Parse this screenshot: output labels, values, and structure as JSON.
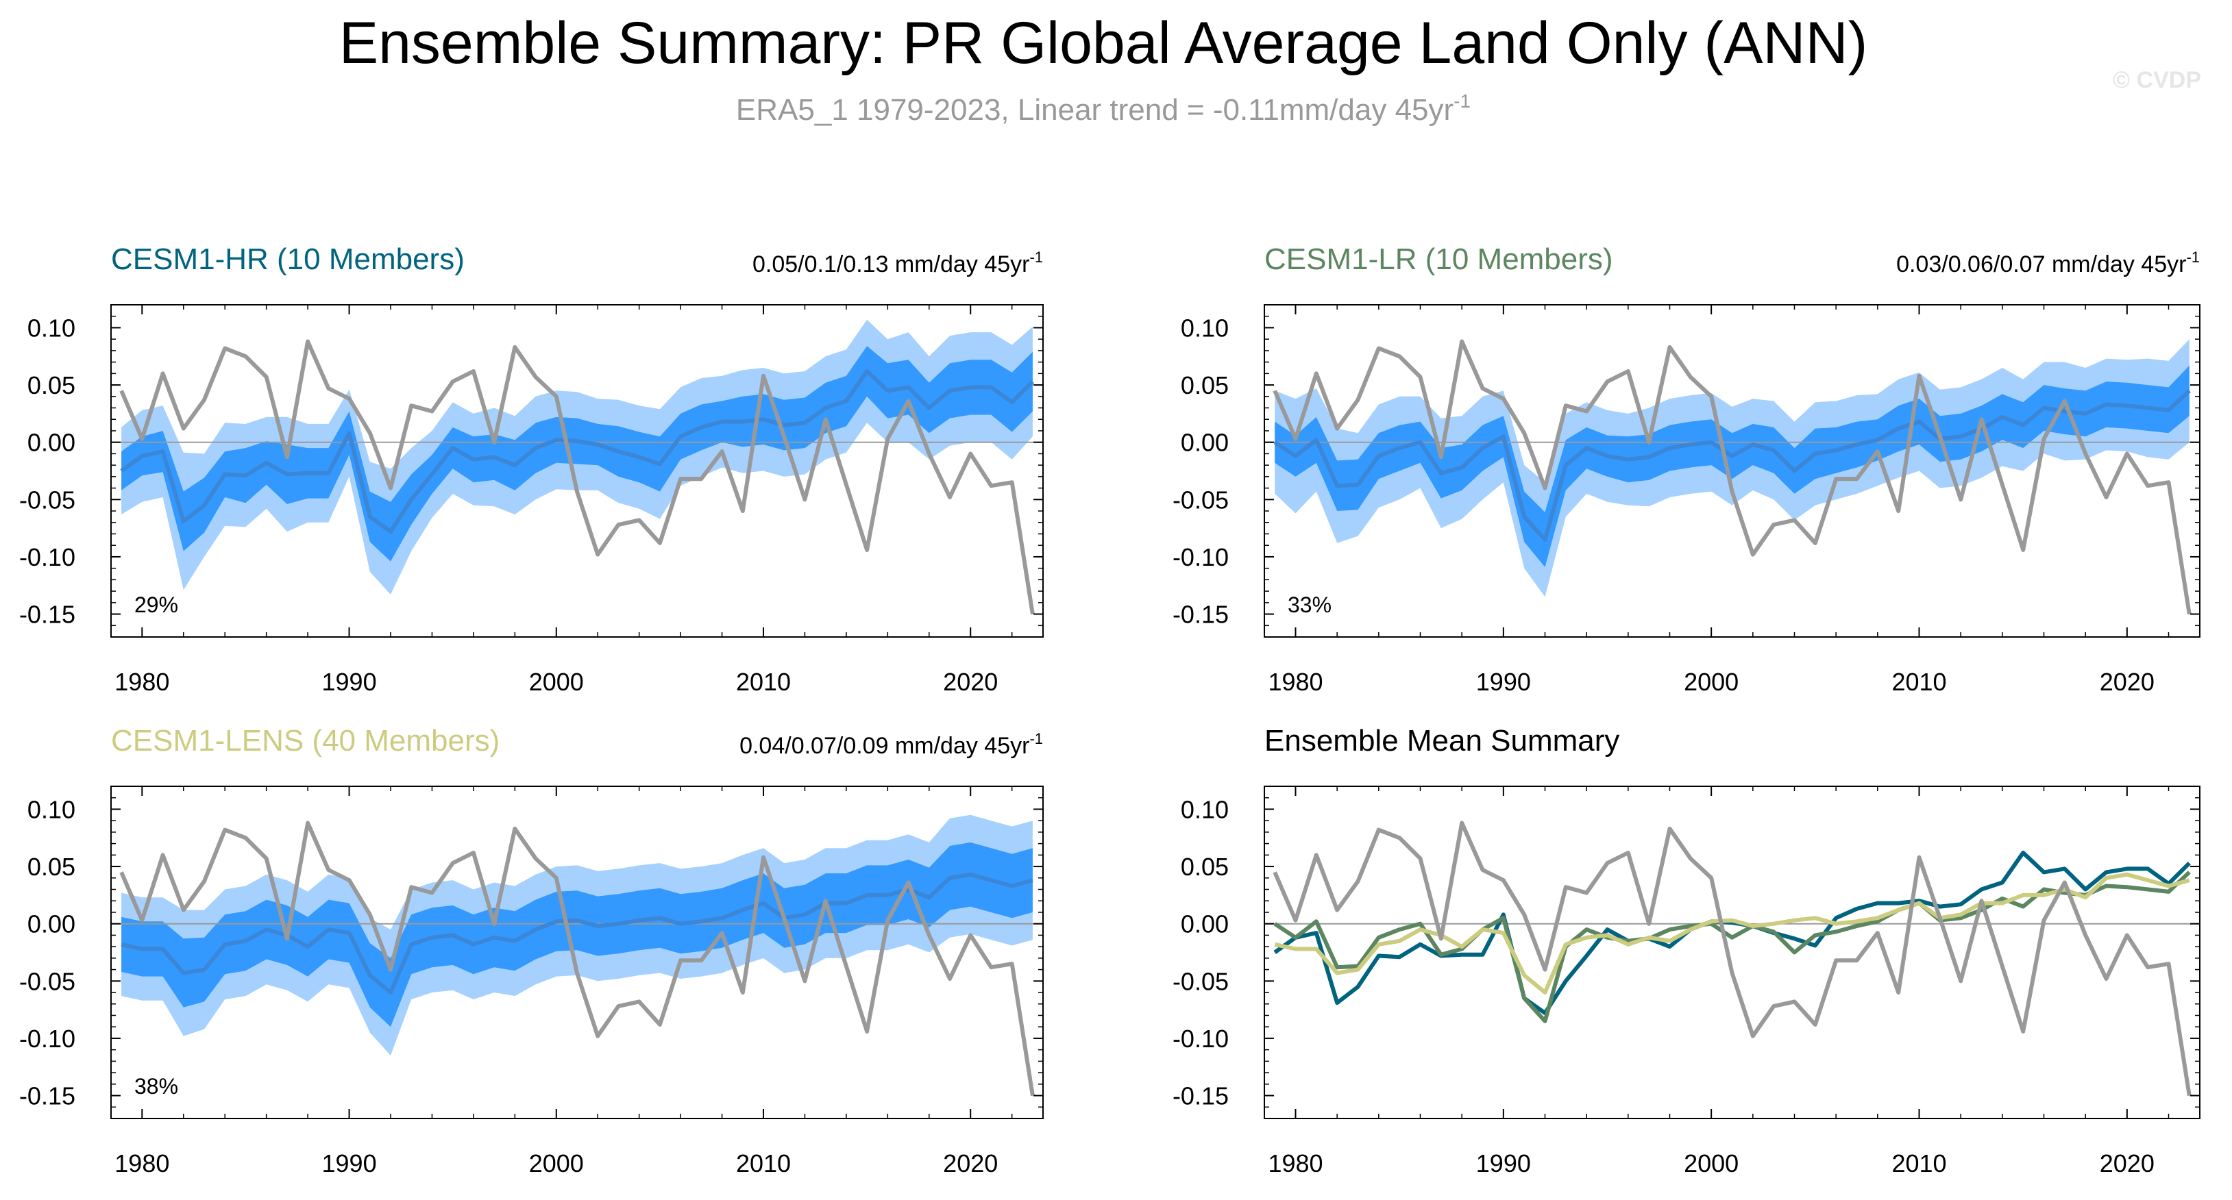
{
  "title": "Ensemble Summary: PR Global Average Land Only (ANN)",
  "subtitle": {
    "main": "ERA5_1 1979-2023, Linear trend = -0.11mm/day 45yr",
    "sup": "-1"
  },
  "watermark": "© CVDP",
  "colors": {
    "obs": "#999999",
    "band_outer": "#a6d1ff",
    "band_inner": "#3399ff",
    "ens_mean": "#3b86d6",
    "hr": "#00637f",
    "lr": "#5b8660",
    "lens": "#cccc80",
    "zero_line": "#999999"
  },
  "chart_data": {
    "type": "line",
    "xlim": [
      1978.5,
      2023.5
    ],
    "ylim": [
      -0.17,
      0.12
    ],
    "x_ticks": [
      "1980",
      "1990",
      "2000",
      "2010",
      "2020"
    ],
    "y_ticks": [
      "0.10",
      "0.05",
      "0.00",
      "-0.05",
      "-0.10",
      "-0.15"
    ],
    "years_start": 1979,
    "obs": {
      "name": "ERA5_1",
      "values": [
        0.045,
        0.003,
        0.06,
        0.012,
        0.037,
        0.082,
        0.075,
        0.057,
        -0.013,
        0.088,
        0.047,
        0.038,
        0.008,
        -0.04,
        0.032,
        0.027,
        0.053,
        0.062,
        0.0,
        0.083,
        0.057,
        0.04,
        -0.043,
        -0.098,
        -0.072,
        -0.068,
        -0.088,
        -0.032,
        -0.032,
        -0.008,
        -0.06,
        0.058,
        0.005,
        -0.05,
        0.02,
        -0.037,
        -0.094,
        0.003,
        0.036,
        -0.01,
        -0.048,
        -0.01,
        -0.038,
        -0.035,
        -0.15
      ]
    },
    "panels": [
      {
        "id": "hr",
        "label": "CESM1-HR (10 Members)",
        "trend": {
          "main": "0.05/0.1/0.13 mm/day 45yr",
          "sup": "-1"
        },
        "pct": "29%",
        "mean": [
          -0.025,
          -0.012,
          -0.008,
          -0.069,
          -0.055,
          -0.028,
          -0.029,
          -0.018,
          -0.028,
          -0.027,
          -0.027,
          0.008,
          -0.065,
          -0.078,
          -0.05,
          -0.028,
          -0.005,
          -0.015,
          -0.013,
          -0.02,
          -0.005,
          0.002,
          0.001,
          -0.002,
          -0.008,
          -0.013,
          -0.019,
          0.005,
          0.013,
          0.018,
          0.018,
          0.02,
          0.015,
          0.017,
          0.03,
          0.036,
          0.062,
          0.045,
          0.048,
          0.03,
          0.045,
          0.048,
          0.048,
          0.035,
          0.053
        ],
        "inner_half": [
          0.017,
          0.017,
          0.018,
          0.026,
          0.024,
          0.02,
          0.024,
          0.019,
          0.026,
          0.022,
          0.022,
          0.019,
          0.022,
          0.026,
          0.022,
          0.017,
          0.018,
          0.02,
          0.02,
          0.022,
          0.022,
          0.02,
          0.02,
          0.018,
          0.022,
          0.022,
          0.024,
          0.02,
          0.02,
          0.018,
          0.022,
          0.022,
          0.022,
          0.022,
          0.022,
          0.022,
          0.022,
          0.024,
          0.024,
          0.022,
          0.024,
          0.024,
          0.024,
          0.026,
          0.026
        ],
        "outer_half": [
          0.038,
          0.04,
          0.04,
          0.06,
          0.045,
          0.045,
          0.045,
          0.04,
          0.05,
          0.043,
          0.043,
          0.038,
          0.048,
          0.055,
          0.045,
          0.038,
          0.04,
          0.04,
          0.043,
          0.043,
          0.045,
          0.043,
          0.043,
          0.04,
          0.045,
          0.045,
          0.048,
          0.043,
          0.043,
          0.04,
          0.045,
          0.045,
          0.045,
          0.045,
          0.045,
          0.045,
          0.045,
          0.045,
          0.048,
          0.045,
          0.048,
          0.048,
          0.048,
          0.05,
          0.048
        ]
      },
      {
        "id": "lr",
        "label": "CESM1-LR (10 Members)",
        "trend": {
          "main": "0.03/0.06/0.07 mm/day 45yr",
          "sup": "-1"
        },
        "pct": "33%",
        "mean": [
          0.0,
          -0.012,
          0.002,
          -0.038,
          -0.037,
          -0.012,
          -0.005,
          0.0,
          -0.027,
          -0.022,
          -0.005,
          0.005,
          -0.065,
          -0.085,
          -0.02,
          -0.005,
          -0.012,
          -0.015,
          -0.013,
          -0.005,
          -0.002,
          0.0,
          -0.012,
          -0.002,
          -0.007,
          -0.025,
          -0.01,
          -0.007,
          -0.002,
          0.002,
          0.012,
          0.018,
          0.003,
          0.005,
          0.012,
          0.022,
          0.015,
          0.03,
          0.027,
          0.025,
          0.033,
          0.032,
          0.03,
          0.028,
          0.045
        ],
        "inner_half": [
          0.018,
          0.018,
          0.02,
          0.022,
          0.022,
          0.02,
          0.02,
          0.018,
          0.022,
          0.02,
          0.02,
          0.018,
          0.022,
          0.024,
          0.022,
          0.018,
          0.018,
          0.02,
          0.02,
          0.02,
          0.02,
          0.02,
          0.02,
          0.018,
          0.02,
          0.02,
          0.022,
          0.02,
          0.02,
          0.018,
          0.02,
          0.02,
          0.02,
          0.02,
          0.02,
          0.02,
          0.02,
          0.02,
          0.02,
          0.02,
          0.02,
          0.02,
          0.02,
          0.02,
          0.022
        ],
        "outer_half": [
          0.045,
          0.05,
          0.045,
          0.05,
          0.045,
          0.045,
          0.045,
          0.04,
          0.048,
          0.045,
          0.045,
          0.04,
          0.045,
          0.05,
          0.045,
          0.04,
          0.04,
          0.04,
          0.043,
          0.043,
          0.043,
          0.043,
          0.043,
          0.04,
          0.043,
          0.043,
          0.045,
          0.043,
          0.043,
          0.04,
          0.043,
          0.043,
          0.043,
          0.043,
          0.043,
          0.043,
          0.04,
          0.04,
          0.043,
          0.04,
          0.04,
          0.04,
          0.043,
          0.043,
          0.045
        ]
      },
      {
        "id": "lens",
        "label": "CESM1-LENS (40 Members)",
        "trend": {
          "main": "0.04/0.07/0.09 mm/day 45yr",
          "sup": "-1"
        },
        "pct": "38%",
        "mean": [
          -0.018,
          -0.022,
          -0.022,
          -0.043,
          -0.04,
          -0.018,
          -0.015,
          -0.005,
          -0.01,
          -0.02,
          -0.005,
          -0.008,
          -0.045,
          -0.06,
          -0.018,
          -0.012,
          -0.01,
          -0.018,
          -0.012,
          -0.015,
          -0.005,
          0.002,
          0.003,
          -0.002,
          0.0,
          0.003,
          0.005,
          0.0,
          0.002,
          0.005,
          0.012,
          0.018,
          0.005,
          0.008,
          0.018,
          0.018,
          0.025,
          0.025,
          0.03,
          0.023,
          0.04,
          0.043,
          0.038,
          0.033,
          0.038
        ],
        "inner_half": [
          0.024,
          0.024,
          0.024,
          0.03,
          0.028,
          0.026,
          0.026,
          0.026,
          0.026,
          0.026,
          0.026,
          0.026,
          0.028,
          0.03,
          0.026,
          0.026,
          0.026,
          0.026,
          0.026,
          0.026,
          0.026,
          0.026,
          0.026,
          0.026,
          0.026,
          0.026,
          0.026,
          0.026,
          0.026,
          0.026,
          0.026,
          0.026,
          0.026,
          0.026,
          0.026,
          0.026,
          0.026,
          0.026,
          0.026,
          0.026,
          0.028,
          0.028,
          0.028,
          0.028,
          0.028
        ],
        "outer_half": [
          0.045,
          0.045,
          0.045,
          0.055,
          0.052,
          0.048,
          0.048,
          0.048,
          0.048,
          0.048,
          0.048,
          0.048,
          0.05,
          0.055,
          0.048,
          0.048,
          0.048,
          0.048,
          0.048,
          0.048,
          0.048,
          0.048,
          0.048,
          0.048,
          0.048,
          0.048,
          0.048,
          0.048,
          0.048,
          0.048,
          0.048,
          0.048,
          0.048,
          0.048,
          0.048,
          0.048,
          0.048,
          0.048,
          0.048,
          0.048,
          0.052,
          0.052,
          0.052,
          0.052,
          0.052
        ]
      },
      {
        "id": "summary",
        "label": "Ensemble Mean Summary",
        "series": [
          "hr",
          "lr",
          "lens"
        ]
      }
    ]
  }
}
